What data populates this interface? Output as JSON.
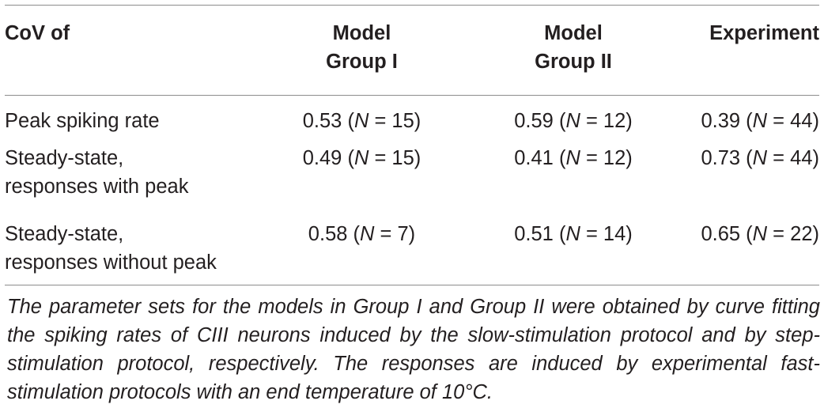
{
  "table": {
    "headers": [
      {
        "line1": "CoV of",
        "line2": ""
      },
      {
        "line1": "Model",
        "line2": "Group I"
      },
      {
        "line1": "Model",
        "line2": "Group II"
      },
      {
        "line1": "Experiment",
        "line2": ""
      }
    ],
    "rows": [
      {
        "label_line1": "Peak spiking rate",
        "label_line2": "",
        "cells": [
          {
            "value": "0.53",
            "open": " (",
            "n_label": "N",
            "n_text": " = 15)"
          },
          {
            "value": "0.59",
            "open": " (",
            "n_label": "N",
            "n_text": " = 12)"
          },
          {
            "value": "0.39",
            "open": " (",
            "n_label": "N",
            "n_text": " = 44)"
          }
        ]
      },
      {
        "label_line1": "Steady-state,",
        "label_line2": "responses with peak",
        "cells": [
          {
            "value": "0.49",
            "open": " (",
            "n_label": "N",
            "n_text": " = 15)"
          },
          {
            "value": "0.41",
            "open": " (",
            "n_label": "N",
            "n_text": " = 12)"
          },
          {
            "value": "0.73",
            "open": " (",
            "n_label": "N",
            "n_text": " = 44)"
          }
        ]
      },
      {
        "label_line1": "Steady-state,",
        "label_line2": "responses without peak",
        "cells": [
          {
            "value": "0.58",
            "open": " (",
            "n_label": "N",
            "n_text": " = 7)"
          },
          {
            "value": "0.51",
            "open": " (",
            "n_label": "N",
            "n_text": " = 14)"
          },
          {
            "value": "0.65",
            "open": " (",
            "n_label": "N",
            "n_text": " = 22)"
          }
        ]
      }
    ]
  },
  "footnote": "The parameter sets for the models in Group I and Group II were obtained by curve fitting the spiking rates of CIII neurons induced by the slow-stimulation protocol and by step-stimulation protocol, respectively. The responses are induced by experimental fast-stimulation protocols with an end temperature of 10°C."
}
